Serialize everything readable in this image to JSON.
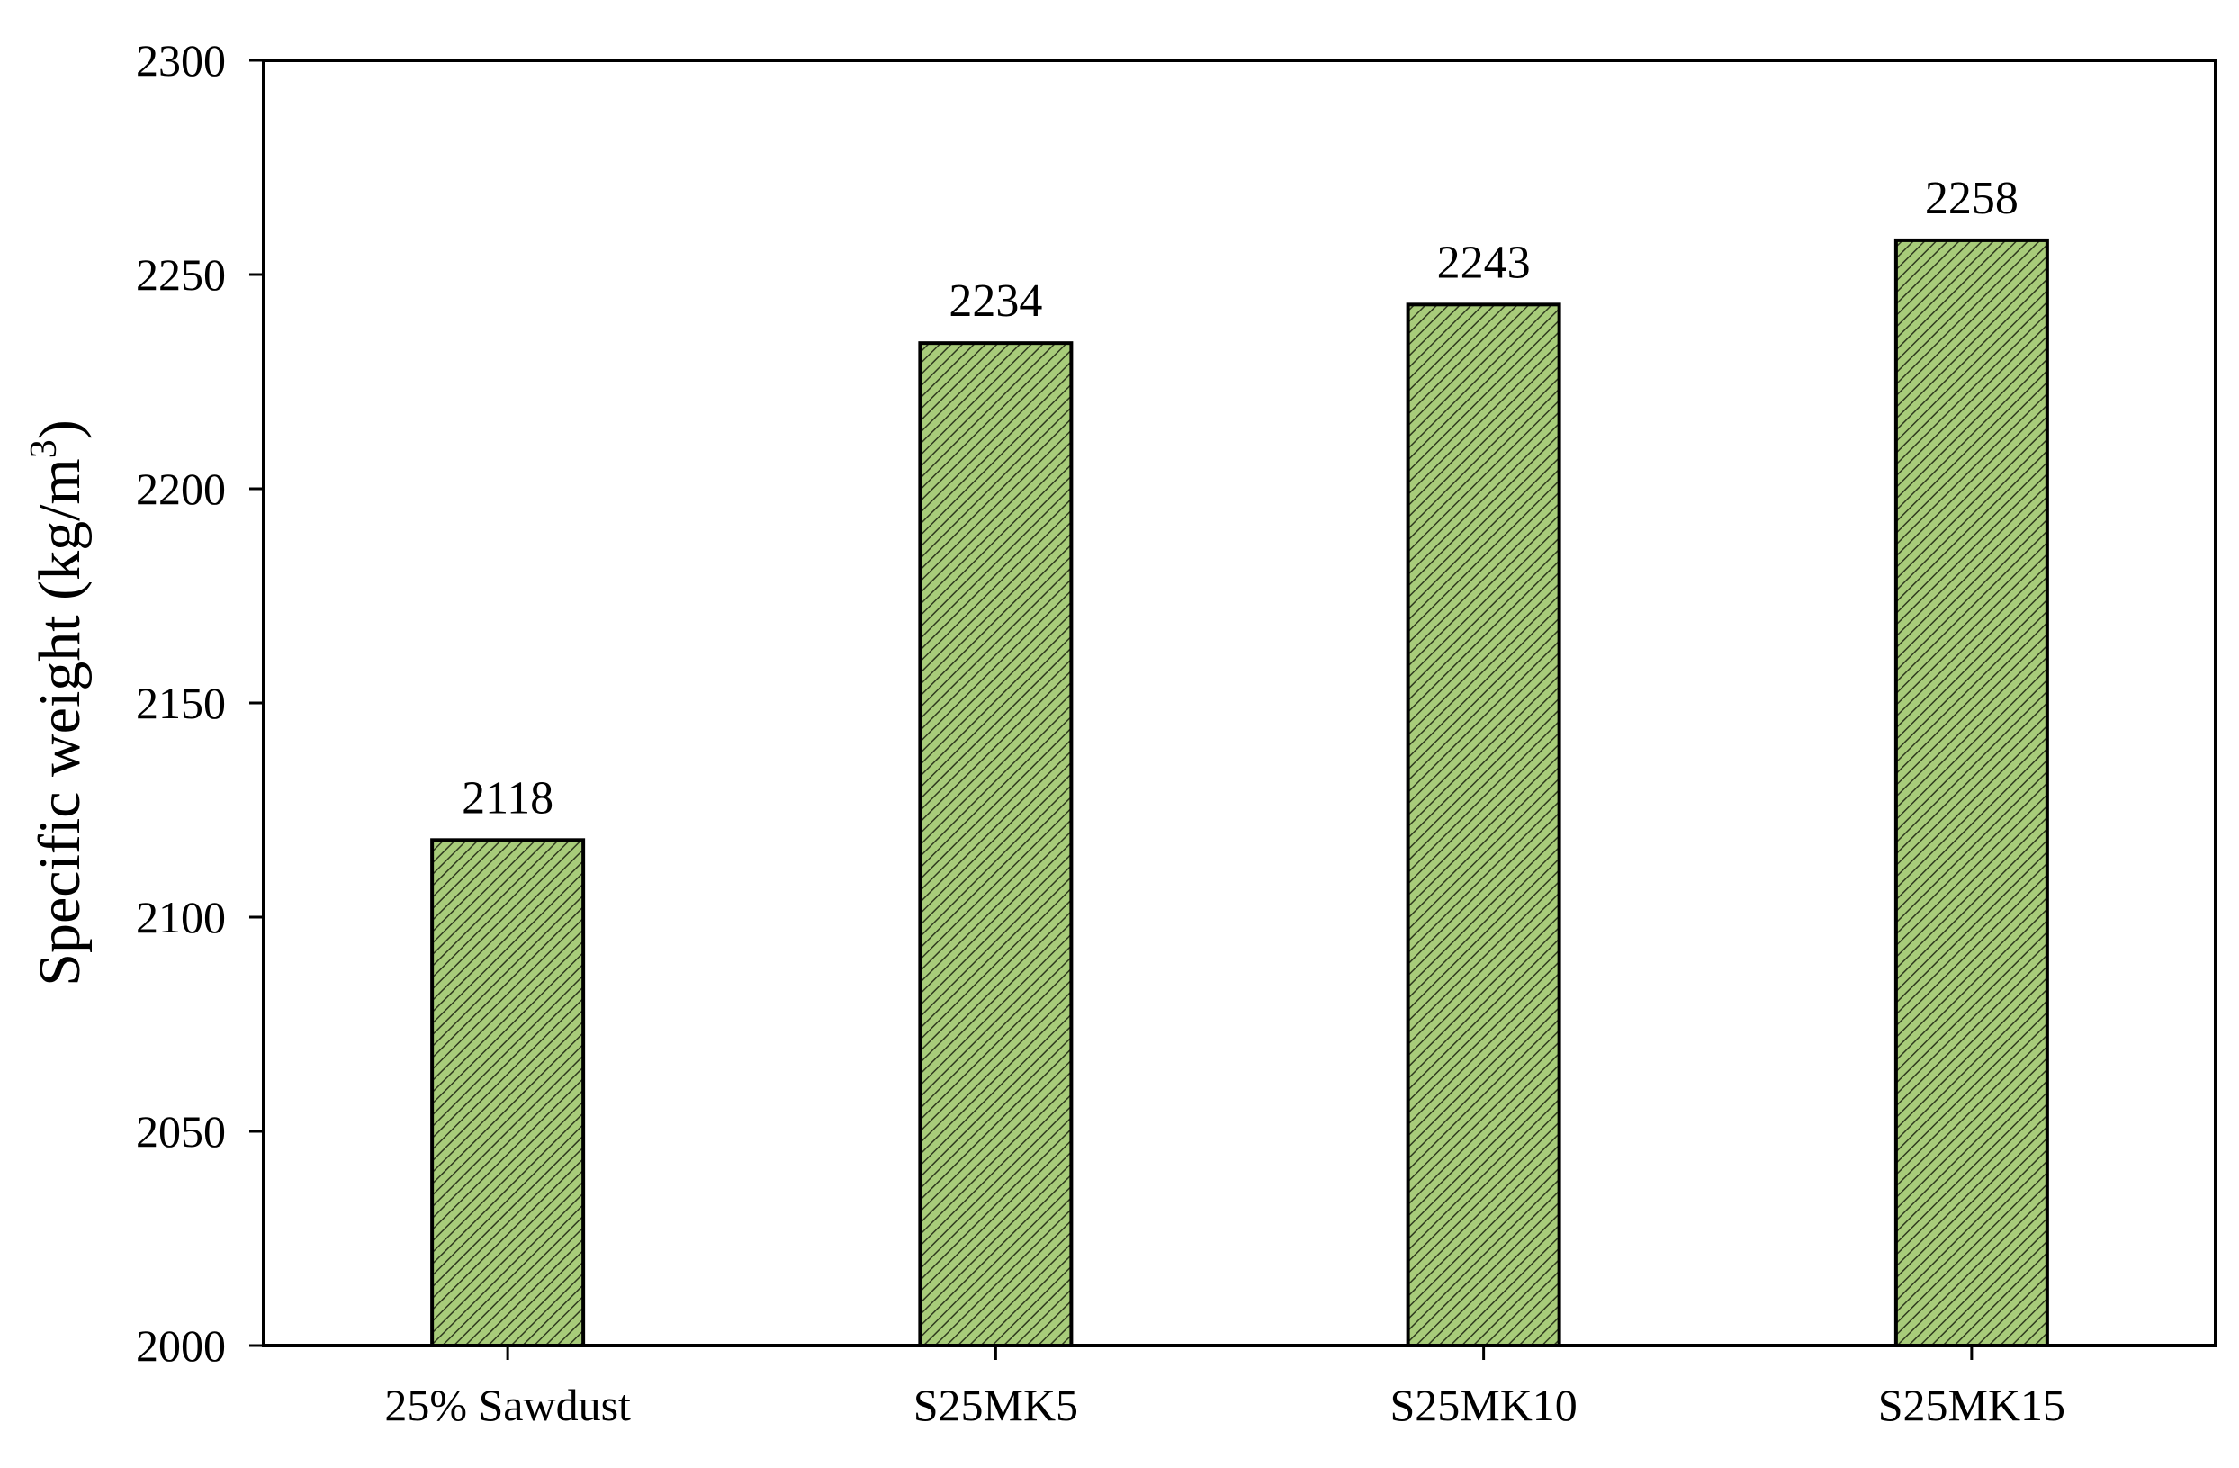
{
  "chart_data": {
    "type": "bar",
    "categories": [
      "25% Sawdust",
      "S25MK5",
      "S25MK10",
      "S25MK15"
    ],
    "series": [
      {
        "values": [
          2118,
          2234,
          2243,
          2258
        ]
      }
    ],
    "data_labels": [
      "2118",
      "2234",
      "2243",
      "2258"
    ],
    "xlabel": "",
    "ylabel": "Specific weight (kg/m3)",
    "ylabel_parts": {
      "base": "Specific weight (kg/m",
      "superscript": "3",
      "closing": ")"
    },
    "ylim": [
      2000,
      2300
    ],
    "yticks": [
      2000,
      2050,
      2100,
      2150,
      2200,
      2250,
      2300
    ],
    "grid": false,
    "legend": "none",
    "colors": {
      "bar_fill": "#a8cc7a",
      "bar_hatch": "#2f3a1e",
      "bar_edge": "#000000",
      "axis": "#000000"
    }
  }
}
